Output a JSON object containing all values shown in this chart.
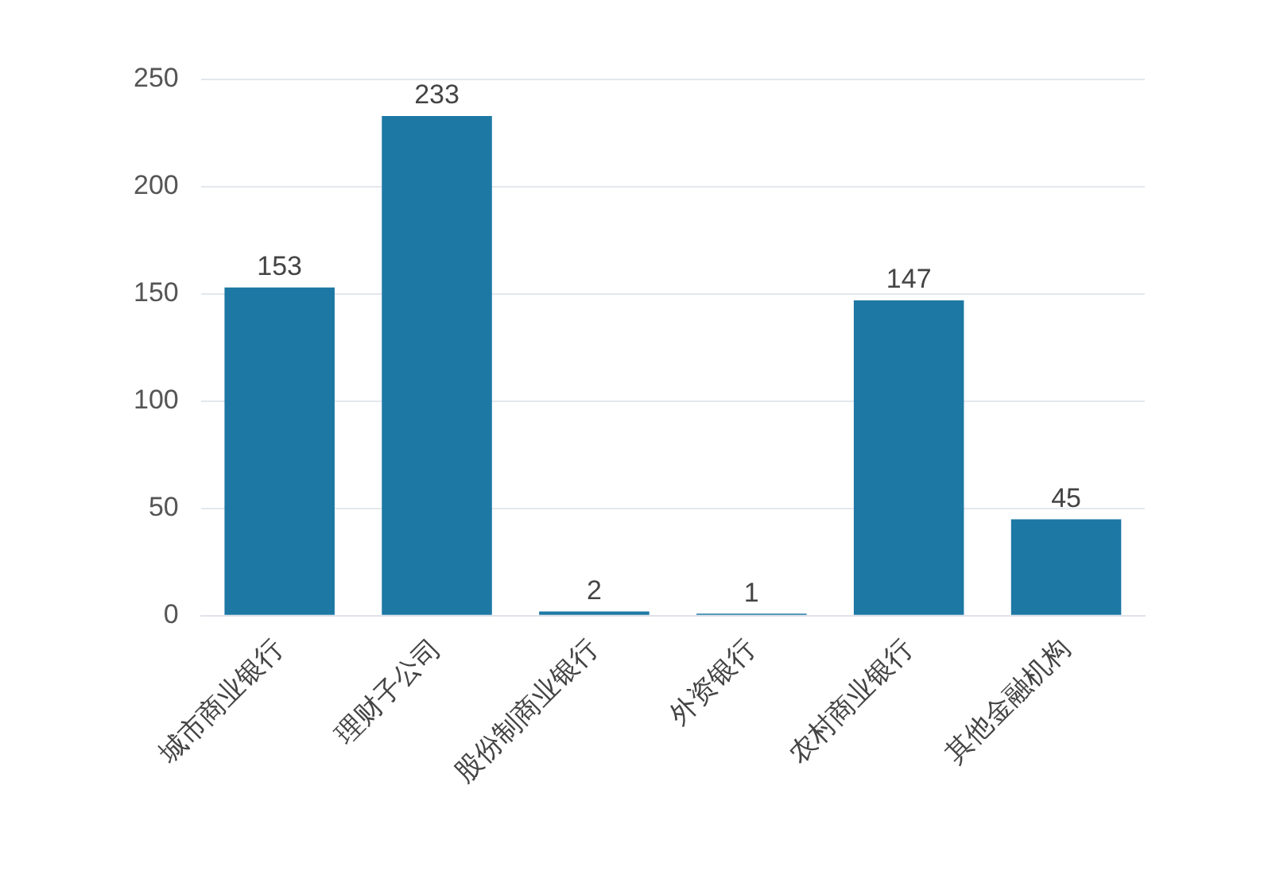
{
  "chart_data": {
    "type": "bar",
    "categories": [
      "城市商业银行",
      "理财子公司",
      "股份制商业银行",
      "外资银行",
      "农村商业银行",
      "其他金融机构"
    ],
    "values": [
      153,
      233,
      2,
      1,
      147,
      45
    ],
    "color": "#1d78a4",
    "ylim": [
      0,
      250
    ],
    "yticks": [
      0,
      50,
      100,
      150,
      200,
      250
    ],
    "grid": "y",
    "data_labels": true
  }
}
